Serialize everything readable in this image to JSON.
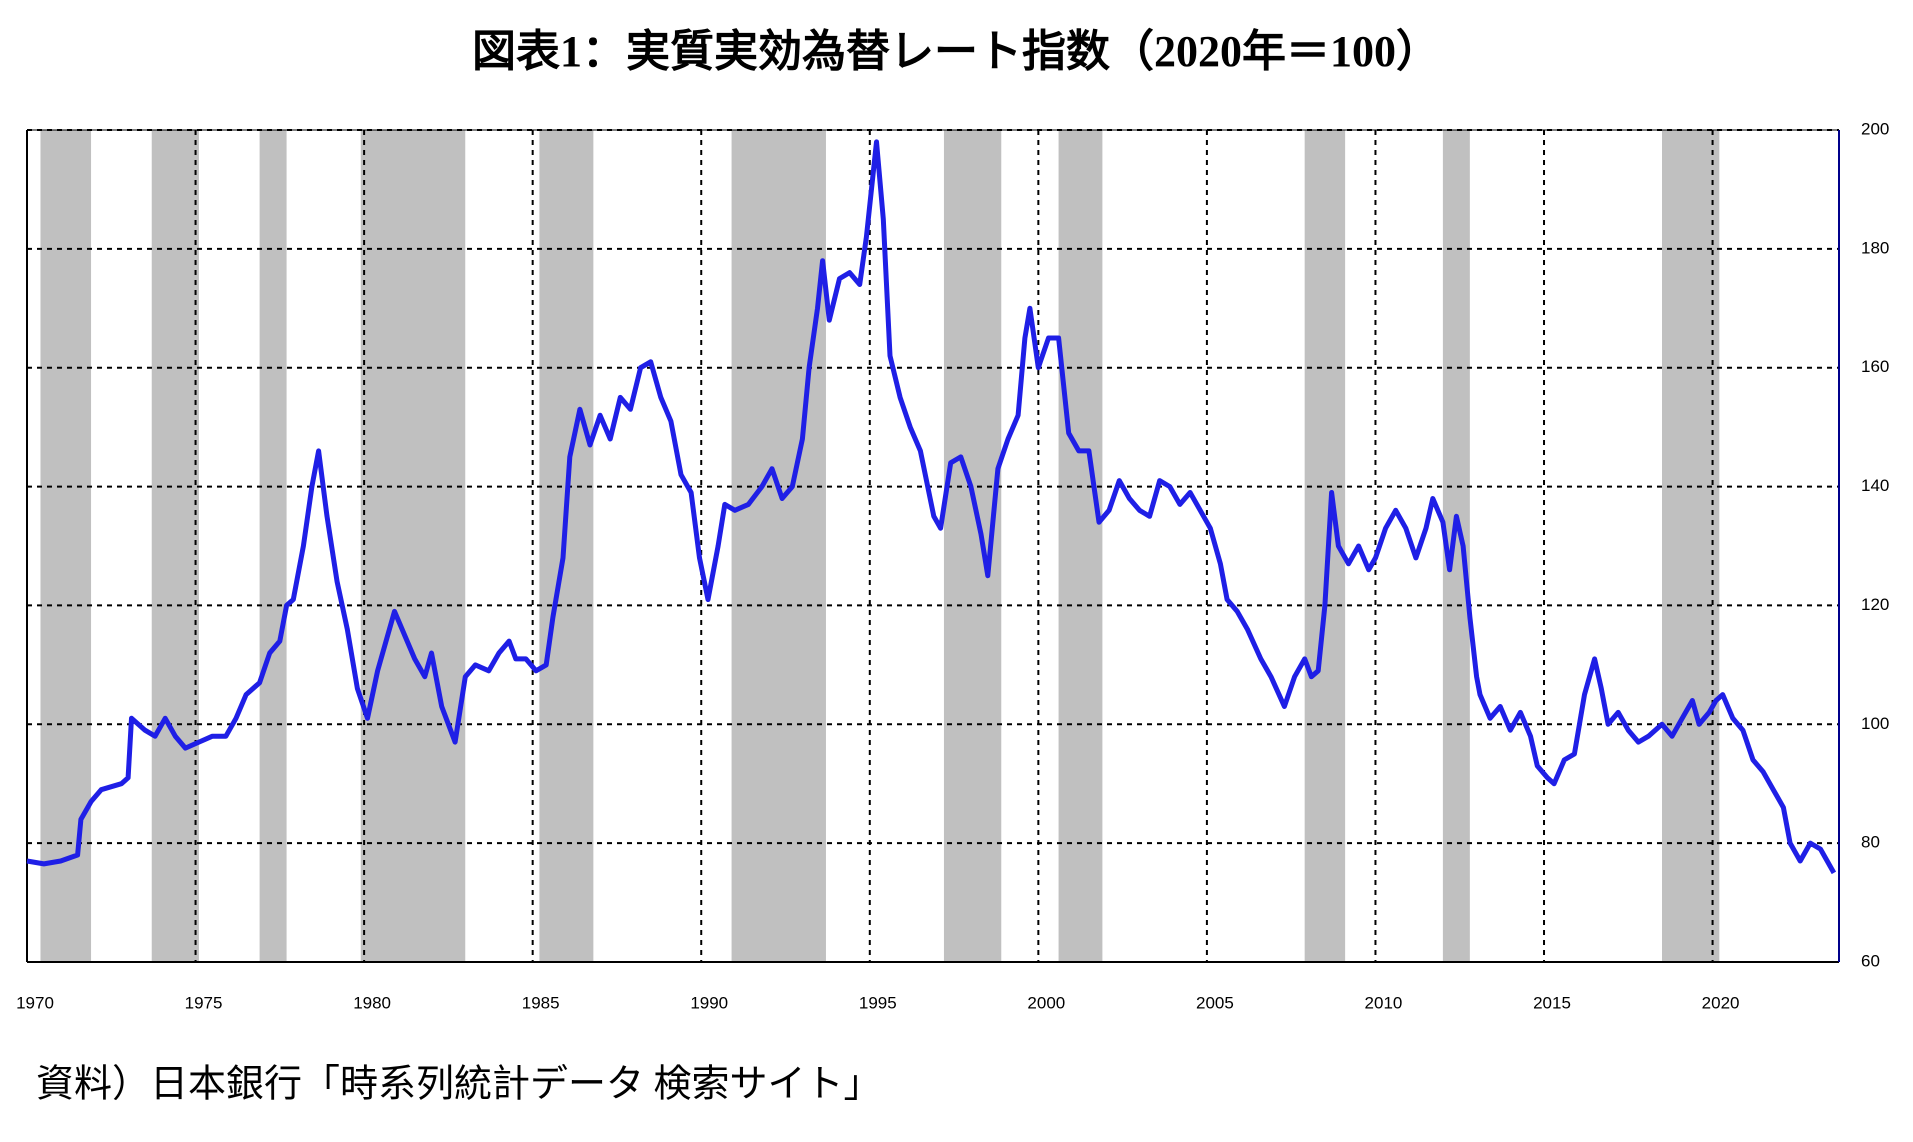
{
  "chart_data": {
    "type": "line",
    "title": "図表1：実質実効為替レート指数（2020年＝100）",
    "source": "資料）日本銀行「時系列統計データ 検索サイト」",
    "x": [
      1970.0,
      1970.5,
      1971.0,
      1971.5,
      1971.6,
      1971.9,
      1972.2,
      1972.8,
      1973.0,
      1973.1,
      1973.5,
      1973.8,
      1974.1,
      1974.4,
      1974.7,
      1975.1,
      1975.5,
      1975.9,
      1976.2,
      1976.5,
      1976.9,
      1977.2,
      1977.5,
      1977.7,
      1977.9,
      1978.2,
      1978.45,
      1978.65,
      1978.9,
      1979.2,
      1979.5,
      1979.8,
      1980.1,
      1980.4,
      1980.9,
      1981.2,
      1981.5,
      1981.8,
      1982.0,
      1982.3,
      1982.7,
      1983.0,
      1983.3,
      1983.7,
      1984.0,
      1984.3,
      1984.5,
      1984.8,
      1985.1,
      1985.4,
      1985.6,
      1985.9,
      1986.1,
      1986.4,
      1986.7,
      1987.0,
      1987.3,
      1987.6,
      1987.9,
      1988.2,
      1988.5,
      1988.8,
      1989.1,
      1989.4,
      1989.7,
      1989.95,
      1990.2,
      1990.5,
      1990.7,
      1991.0,
      1991.4,
      1991.8,
      1992.1,
      1992.4,
      1992.7,
      1993.0,
      1993.2,
      1993.45,
      1993.6,
      1993.8,
      1994.1,
      1994.4,
      1994.7,
      1994.9,
      1995.2,
      1995.4,
      1995.6,
      1995.9,
      1996.2,
      1996.5,
      1996.9,
      1997.1,
      1997.4,
      1997.7,
      1998.0,
      1998.3,
      1998.5,
      1998.8,
      1999.1,
      1999.4,
      1999.6,
      1999.75,
      2000.0,
      2000.3,
      2000.6,
      2000.9,
      2001.2,
      2001.5,
      2001.8,
      2002.1,
      2002.4,
      2002.7,
      2003.0,
      2003.3,
      2003.6,
      2003.9,
      2004.2,
      2004.5,
      2004.8,
      2005.1,
      2005.4,
      2005.6,
      2005.9,
      2006.2,
      2006.6,
      2006.9,
      2007.3,
      2007.6,
      2007.9,
      2008.1,
      2008.3,
      2008.5,
      2008.7,
      2008.9,
      2009.2,
      2009.5,
      2009.8,
      2010.0,
      2010.3,
      2010.6,
      2010.9,
      2011.2,
      2011.5,
      2011.7,
      2012.0,
      2012.2,
      2012.4,
      2012.6,
      2012.8,
      2013.0,
      2013.1,
      2013.4,
      2013.7,
      2014.0,
      2014.3,
      2014.6,
      2014.8,
      2015.1,
      2015.3,
      2015.6,
      2015.9,
      2016.2,
      2016.5,
      2016.7,
      2016.9,
      2017.2,
      2017.5,
      2017.8,
      2018.1,
      2018.5,
      2018.8,
      2019.1,
      2019.4,
      2019.6,
      2019.9,
      2020.1,
      2020.3,
      2020.6,
      2020.9,
      2021.2,
      2021.5,
      2021.8,
      2022.1,
      2022.3,
      2022.6,
      2022.9,
      2023.2,
      2023.6
    ],
    "values": [
      77,
      76.5,
      77,
      78,
      84,
      87,
      89,
      90,
      91,
      101,
      99,
      98,
      101,
      98,
      96,
      97,
      98,
      98,
      101,
      105,
      107,
      112,
      114,
      120,
      121,
      130,
      140,
      146,
      135,
      124,
      116,
      106,
      101,
      109,
      119,
      115,
      111,
      108,
      112,
      103,
      97,
      108,
      110,
      109,
      112,
      114,
      111,
      111,
      109,
      110,
      118,
      128,
      145,
      153,
      147,
      152,
      148,
      155,
      153,
      160,
      161,
      155,
      151,
      142,
      139,
      128,
      121,
      130,
      137,
      136,
      137,
      140,
      143,
      138,
      140,
      148,
      160,
      170,
      178,
      168,
      175,
      176,
      174,
      182,
      198,
      185,
      162,
      155,
      150,
      146,
      135,
      133,
      144,
      145,
      140,
      132,
      125,
      143,
      148,
      152,
      165,
      170,
      160,
      165,
      165,
      149,
      146,
      146,
      134,
      136,
      141,
      138,
      136,
      135,
      141,
      140,
      137,
      139,
      136,
      133,
      127,
      121,
      119,
      116,
      111,
      108,
      103,
      108,
      111,
      108,
      109,
      120,
      139,
      130,
      127,
      130,
      126,
      128,
      133,
      136,
      133,
      128,
      133,
      138,
      134,
      126,
      135,
      130,
      118,
      108,
      105,
      101,
      103,
      99,
      102,
      98,
      93,
      91,
      90,
      94,
      95,
      105,
      111,
      106,
      100,
      102,
      99,
      97,
      98,
      100,
      98,
      101,
      104,
      100,
      102,
      104,
      105,
      101,
      99,
      94,
      92,
      89,
      86,
      80,
      77,
      80,
      79,
      75
    ],
    "color": "#1f1fe6",
    "xlim": [
      1970,
      2023.75
    ],
    "xticks": [
      1970,
      1975,
      1980,
      1985,
      1990,
      1995,
      2000,
      2005,
      2010,
      2015,
      2020
    ],
    "ylim": [
      60,
      200
    ],
    "yticks": [
      60,
      80,
      100,
      120,
      140,
      160,
      180,
      200
    ],
    "grid": true,
    "shaded_periods": [
      [
        1970.4,
        1971.9
      ],
      [
        1973.7,
        1975.1
      ],
      [
        1976.9,
        1977.7
      ],
      [
        1979.9,
        1983.0
      ],
      [
        1985.2,
        1986.8
      ],
      [
        1990.9,
        1993.7
      ],
      [
        1997.2,
        1998.9
      ],
      [
        2000.6,
        2001.9
      ],
      [
        2007.9,
        2009.1
      ],
      [
        2012.0,
        2012.8
      ],
      [
        2018.5,
        2020.2
      ]
    ],
    "shade_color": "#c0c0c0"
  }
}
